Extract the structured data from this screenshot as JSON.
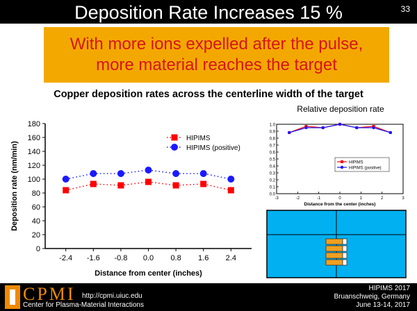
{
  "header": {
    "title": "Deposition Rate Increases 15 %",
    "slide_number": "33"
  },
  "callout": {
    "line1": "With more ions expelled after the pulse,",
    "line2": "more material reaches the target"
  },
  "subtitle": "Copper deposition rates across the centerline width of the target",
  "inset_title": "Relative deposition rate",
  "footer": {
    "logo": "CPMI",
    "url": "http://cpmi.uiuc.edu",
    "center": "Center for Plasma-Material Interactions",
    "conf_line1": "HIPIMS 2017",
    "conf_line2": "Bruanschweig, Germany",
    "conf_line3": "June 13-14, 2017"
  },
  "colors": {
    "hipims": "#ff0000",
    "hipims_positive": "#1a1aff",
    "callout_bg": "#f3a800",
    "callout_text": "#d8141a",
    "target_bg": "#00b0f0",
    "magnet": "#f0a020"
  },
  "chart_data": [
    {
      "type": "scatter",
      "xlabel": "Distance from center (inches)",
      "ylabel": "Deposition rate (nm/min)",
      "xlim": [
        -3.0,
        3.0
      ],
      "ylim": [
        0,
        180
      ],
      "xticks": [
        "-2.4",
        "-1.6",
        "-0.8",
        "0.0",
        "0.8",
        "1.6",
        "2.4"
      ],
      "yticks": [
        "0",
        "20",
        "40",
        "60",
        "80",
        "100",
        "120",
        "140",
        "160",
        "180"
      ],
      "x": [
        -2.4,
        -1.6,
        -0.8,
        0.0,
        0.8,
        1.6,
        2.4
      ],
      "series": [
        {
          "name": "HIPIMS",
          "values": [
            84,
            93,
            91,
            96,
            91,
            93,
            84
          ],
          "errors": [
            4,
            3,
            3,
            3,
            3,
            3,
            4
          ]
        },
        {
          "name": "HIPIMS (positive)",
          "values": [
            100,
            108,
            108,
            113,
            108,
            108,
            100
          ],
          "errors": [
            2,
            2,
            2,
            2,
            2,
            2,
            2
          ]
        }
      ],
      "legend": "top-right",
      "grid": false
    },
    {
      "type": "line",
      "title": "Relative deposition rate",
      "xlabel": "Distance from the center (inches)",
      "ylabel": "",
      "xlim": [
        -3,
        3
      ],
      "ylim": [
        0,
        1.0
      ],
      "xticks": [
        "-3",
        "-2",
        "-1",
        "0",
        "1",
        "2",
        "3"
      ],
      "yticks": [
        "0.0",
        "0.1",
        "0.2",
        "0.3",
        "0.4",
        "0.5",
        "0.6",
        "0.7",
        "0.8",
        "0.9",
        "1.0"
      ],
      "x": [
        -2.4,
        -1.6,
        -0.8,
        0.0,
        0.8,
        1.6,
        2.4
      ],
      "series": [
        {
          "name": "HIPIMS",
          "values": [
            0.88,
            0.97,
            0.95,
            1.0,
            0.95,
            0.97,
            0.88
          ]
        },
        {
          "name": "HIPIMS (positive)",
          "values": [
            0.88,
            0.95,
            0.95,
            1.0,
            0.95,
            0.95,
            0.88
          ]
        }
      ],
      "legend": "center-right",
      "grid": false
    }
  ]
}
